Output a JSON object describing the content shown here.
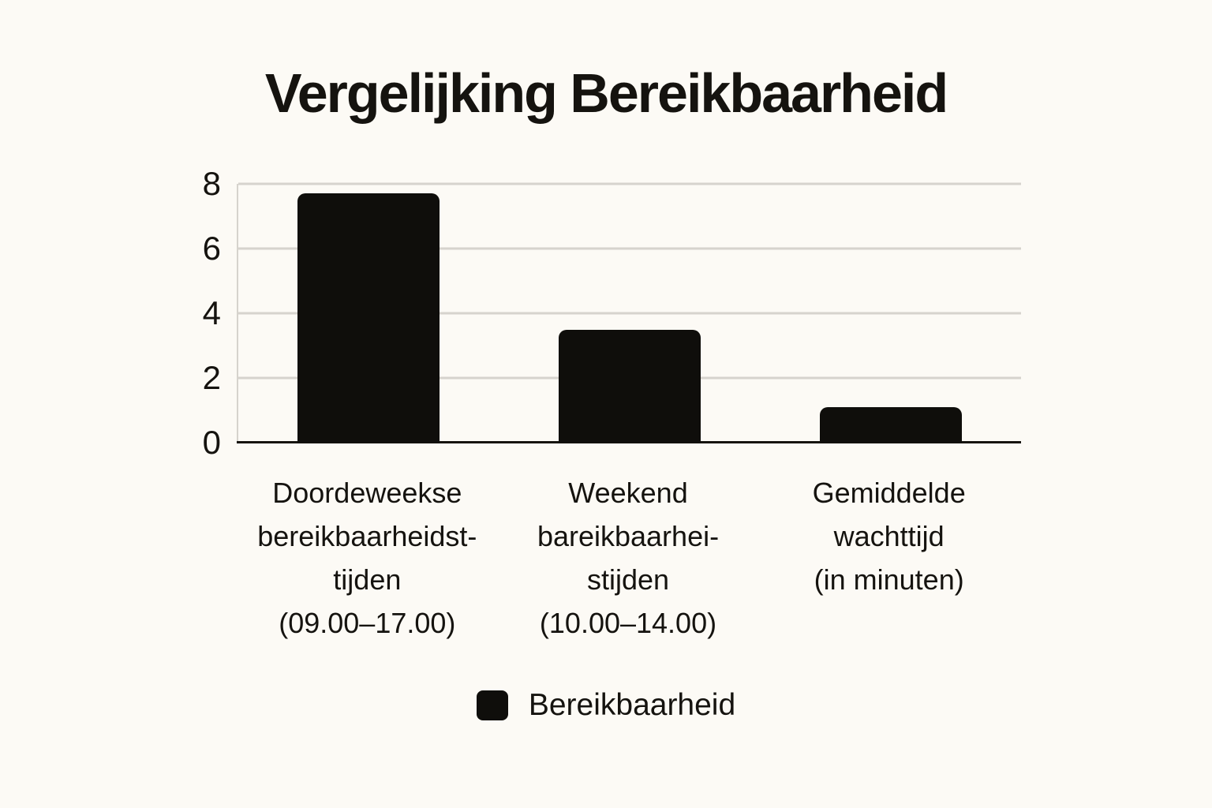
{
  "page": {
    "background": "#FCFAF5"
  },
  "colors": {
    "bar": "#0F0E0B",
    "grid": "#D6D3CD",
    "axis": "#16140F",
    "text": "#15130F",
    "background": "#FCFAF5"
  },
  "legend": {
    "label": "Bereikbaarheid"
  },
  "chart_data": {
    "type": "bar",
    "title": "Vergelijking Bereikbaarheid",
    "categories": [
      "Doordeweekse\nbereikbaarheidst-\ntijden\n(09.00–17.00)",
      "Weekend\nbareikbaarhei-\nstijden\n(10.00–14.00)",
      "Gemiddelde\nwachttijd\n(in minuten)"
    ],
    "series": [
      {
        "name": "Bereikbaarheid",
        "values": [
          7.7,
          3.5,
          1.1
        ]
      }
    ],
    "values": [
      7.7,
      3.5,
      1.1
    ],
    "xlabel": "",
    "ylabel": "",
    "ylim": [
      0,
      8
    ],
    "yticks": [
      0,
      2,
      4,
      6,
      8
    ],
    "grid": true,
    "legend_position": "bottom",
    "bar_width_fraction": 0.545
  }
}
